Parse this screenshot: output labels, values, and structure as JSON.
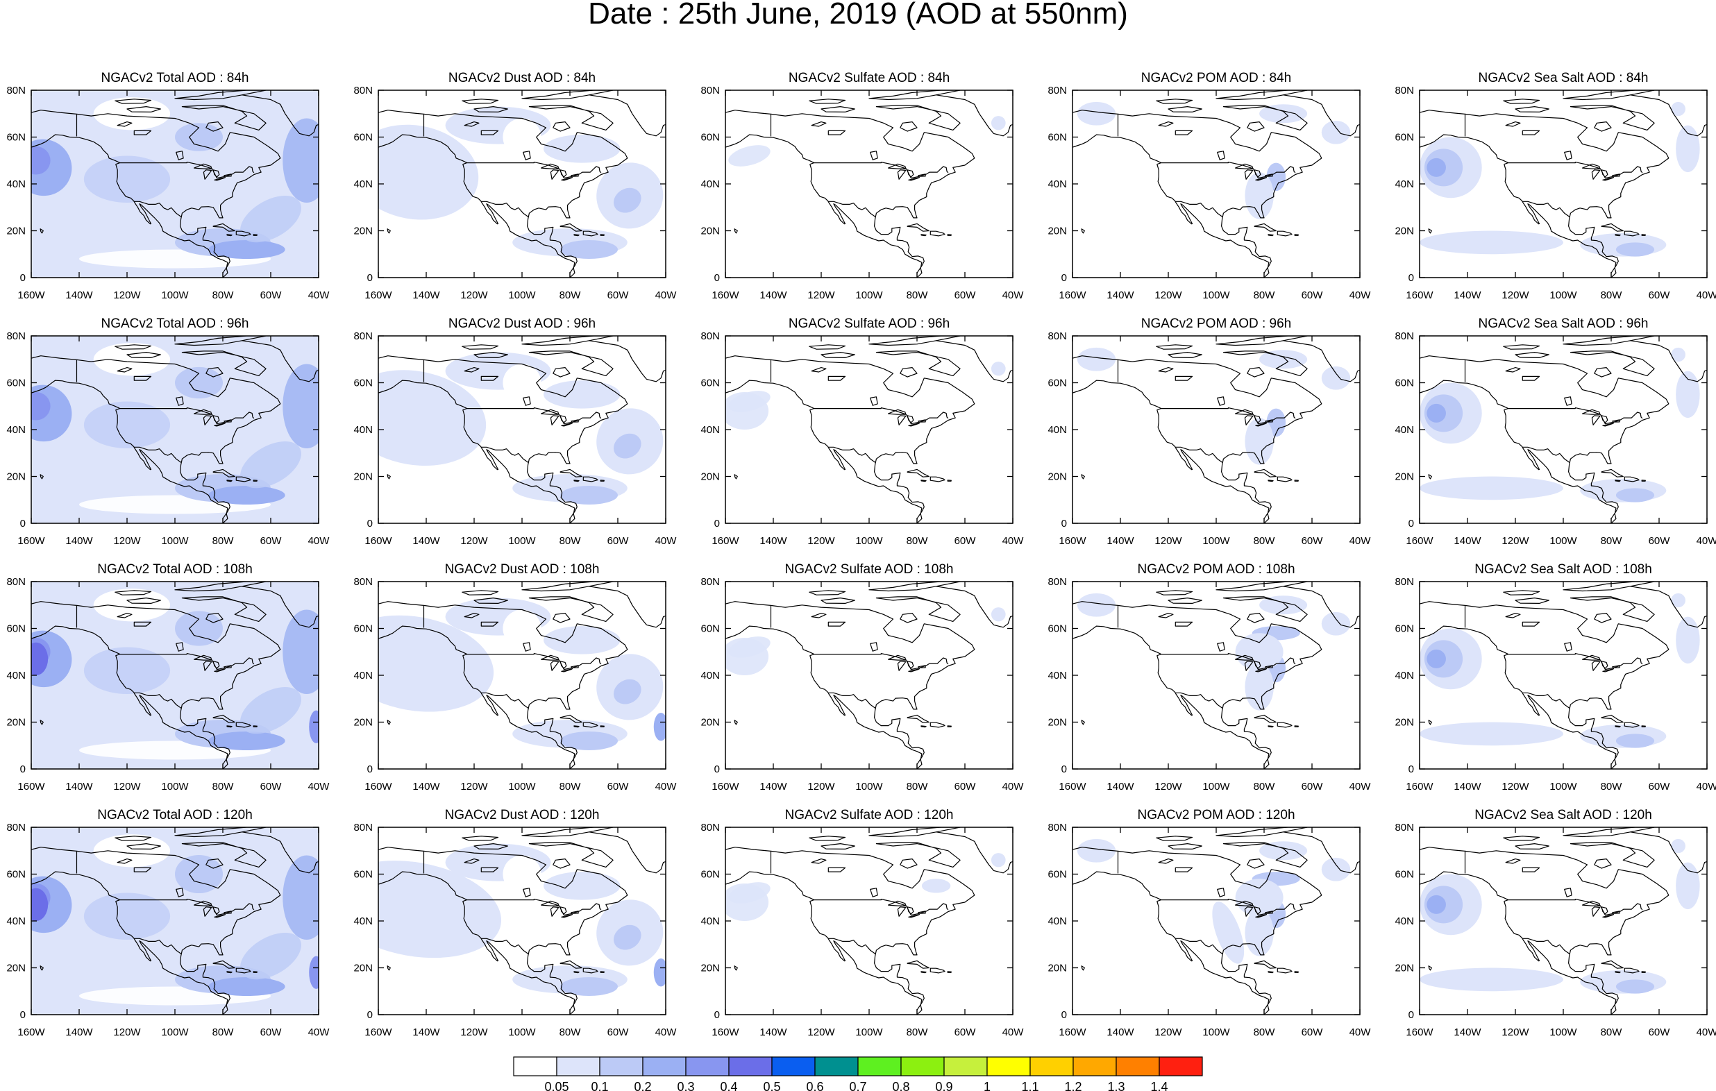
{
  "title": "Date : 25th June, 2019 (AOD at 550nm)",
  "rows": [
    "84h",
    "96h",
    "108h",
    "120h"
  ],
  "panels": [
    [
      "NGACv2 Total AOD : 84h",
      "NGACv2 Dust AOD : 84h",
      "NGACv2 Sulfate AOD : 84h",
      "NGACv2 POM AOD : 84h",
      "NGACv2 Sea Salt AOD : 84h"
    ],
    [
      "NGACv2 Total AOD : 96h",
      "NGACv2 Dust AOD : 96h",
      "NGACv2 Sulfate AOD : 96h",
      "NGACv2 POM AOD : 96h",
      "NGACv2 Sea Salt AOD : 96h"
    ],
    [
      "NGACv2 Total AOD : 108h",
      "NGACv2 Dust AOD : 108h",
      "NGACv2 Sulfate AOD : 108h",
      "NGACv2 POM AOD : 108h",
      "NGACv2 Sea Salt AOD : 108h"
    ],
    [
      "NGACv2 Total AOD : 120h",
      "NGACv2 Dust AOD : 120h",
      "NGACv2 Sulfate AOD : 120h",
      "NGACv2 POM AOD : 120h",
      "NGACv2 Sea Salt  AOD : 120h"
    ]
  ],
  "axes": {
    "lon_ticks": [
      "160W",
      "140W",
      "120W",
      "100W",
      "80W",
      "60W",
      "40W"
    ],
    "lat_ticks": [
      "0",
      "20N",
      "40N",
      "60N",
      "80N"
    ],
    "lon_range": [
      -160,
      -40
    ],
    "lat_range": [
      0,
      80
    ]
  },
  "colorbar": {
    "colors": [
      "#ffffff",
      "#dde4fa",
      "#bccaf6",
      "#9bb0f3",
      "#8896f0",
      "#6b6ee8",
      "#0a5ef0",
      "#009090",
      "#5ef020",
      "#8cf010",
      "#c6f03c",
      "#ffff00",
      "#ffd000",
      "#ffa800",
      "#ff8000",
      "#ff2010"
    ],
    "labels": [
      "0.05",
      "0.1",
      "0.2",
      "0.3",
      "0.4",
      "0.5",
      "0.6",
      "0.7",
      "0.8",
      "0.9",
      "1",
      "1.1",
      "1.2",
      "1.3",
      "1.4"
    ]
  }
}
